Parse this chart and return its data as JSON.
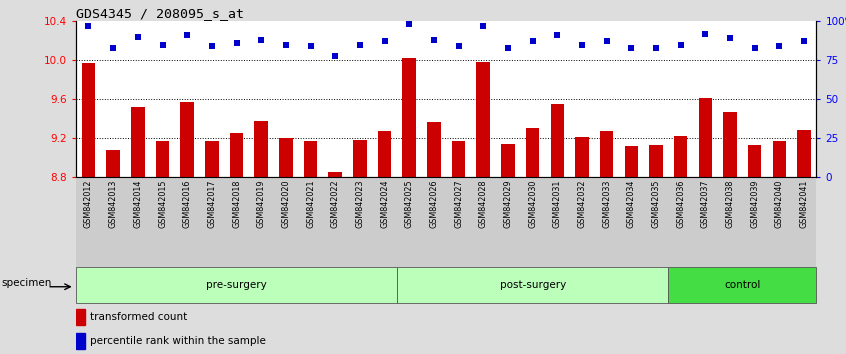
{
  "title": "GDS4345 / 208095_s_at",
  "samples": [
    "GSM842012",
    "GSM842013",
    "GSM842014",
    "GSM842015",
    "GSM842016",
    "GSM842017",
    "GSM842018",
    "GSM842019",
    "GSM842020",
    "GSM842021",
    "GSM842022",
    "GSM842023",
    "GSM842024",
    "GSM842025",
    "GSM842026",
    "GSM842027",
    "GSM842028",
    "GSM842029",
    "GSM842030",
    "GSM842031",
    "GSM842032",
    "GSM842033",
    "GSM842034",
    "GSM842035",
    "GSM842036",
    "GSM842037",
    "GSM842038",
    "GSM842039",
    "GSM842040",
    "GSM842041"
  ],
  "bar_values": [
    9.97,
    9.08,
    9.52,
    9.17,
    9.57,
    9.17,
    9.25,
    9.38,
    9.2,
    9.17,
    8.85,
    9.18,
    9.27,
    10.02,
    9.37,
    9.17,
    9.98,
    9.14,
    9.3,
    9.55,
    9.21,
    9.27,
    9.12,
    9.13,
    9.22,
    9.61,
    9.47,
    9.13,
    9.17,
    9.28
  ],
  "percentile_values": [
    97,
    83,
    90,
    85,
    91,
    84,
    86,
    88,
    85,
    84,
    78,
    85,
    87,
    98,
    88,
    84,
    97,
    83,
    87,
    91,
    85,
    87,
    83,
    83,
    85,
    92,
    89,
    83,
    84,
    87
  ],
  "group_starts": [
    0,
    13,
    24
  ],
  "group_ends": [
    13,
    24,
    30
  ],
  "group_names": [
    "pre-surgery",
    "post-surgery",
    "control"
  ],
  "group_colors": [
    "#bbffbb",
    "#bbffbb",
    "#44dd44"
  ],
  "bar_color": "#cc0000",
  "percentile_color": "#0000cc",
  "ylim_left": [
    8.8,
    10.4
  ],
  "ylim_right": [
    0,
    100
  ],
  "yticks_left": [
    8.8,
    9.2,
    9.6,
    10.0,
    10.4
  ],
  "yticks_right": [
    0,
    25,
    50,
    75,
    100
  ],
  "ytick_labels_right": [
    "0",
    "25",
    "50",
    "75",
    "100%"
  ],
  "dotted_lines": [
    9.2,
    9.6,
    10.0
  ],
  "bg_color": "#dddddd",
  "plot_bg": "#ffffff",
  "xlabel_bg": "#cccccc",
  "legend_items": [
    "transformed count",
    "percentile rank within the sample"
  ]
}
